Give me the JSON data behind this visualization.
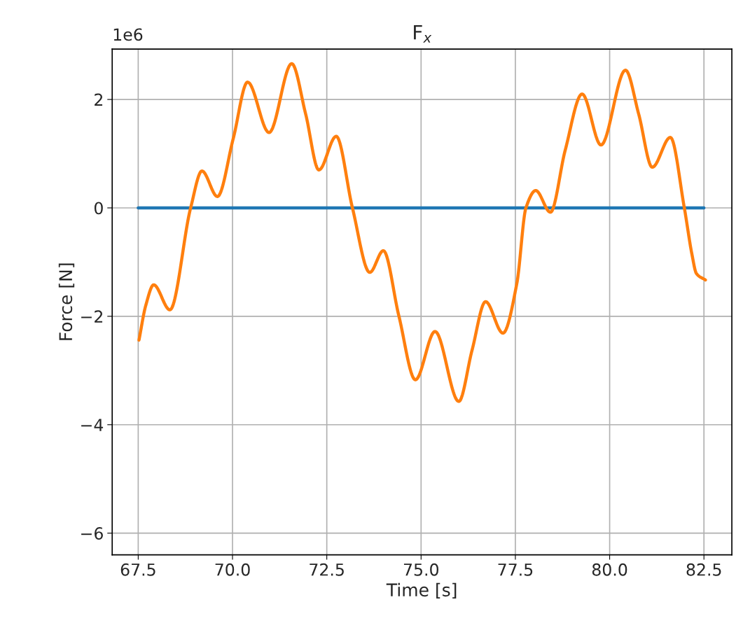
{
  "chart_data": {
    "type": "line",
    "title": "F$_{x}$",
    "xlabel": "Time [s]",
    "ylabel": "Force [N]",
    "annotations": [
      "1e6"
    ],
    "series": [
      {
        "color": "#1f77b4",
        "x": [
          67.5,
          70.0,
          72.5,
          75.0,
          77.5,
          80.0,
          82.5
        ],
        "values": [
          0,
          0,
          0,
          0,
          0,
          0,
          0
        ]
      },
      {
        "color": "#ff7f0e",
        "x": [
          67.52,
          67.7,
          67.91,
          68.34,
          68.89,
          69.19,
          69.6,
          70.02,
          70.4,
          70.97,
          71.57,
          71.94,
          72.29,
          72.75,
          73.18,
          73.64,
          74.0,
          74.41,
          74.85,
          75.37,
          76.0,
          76.35,
          76.71,
          77.17,
          77.54,
          77.78,
          78.04,
          78.43,
          78.82,
          79.27,
          79.77,
          80.42,
          80.77,
          81.13,
          81.61,
          81.98,
          82.18,
          82.3,
          82.54
        ],
        "values": [
          -2.44,
          -1.8,
          -1.42,
          -1.88,
          0,
          0.68,
          0.21,
          1.28,
          2.32,
          1.39,
          2.66,
          1.73,
          0.7,
          1.32,
          0,
          -1.19,
          -0.79,
          -1.99,
          -3.17,
          -2.28,
          -3.57,
          -2.63,
          -1.73,
          -2.31,
          -1.39,
          0,
          0.32,
          -0.08,
          1.06,
          2.1,
          1.16,
          2.54,
          1.73,
          0.75,
          1.3,
          0,
          -0.85,
          -1.21,
          -1.33
        ]
      }
    ],
    "xlim": [
      66.81,
      83.24
    ],
    "ylim": [
      -6.4,
      2.93
    ],
    "xticks": [
      {
        "value": 67.5,
        "label": "67.5"
      },
      {
        "value": 70,
        "label": "70.0"
      },
      {
        "value": 72.5,
        "label": "72.5"
      },
      {
        "value": 75,
        "label": "75.0"
      },
      {
        "value": 77.5,
        "label": "77.5"
      },
      {
        "value": 80,
        "label": "80.0"
      },
      {
        "value": 82.5,
        "label": "82.5"
      }
    ],
    "yticks": [
      {
        "value": -6,
        "label": "−6"
      },
      {
        "value": -4,
        "label": "−4"
      },
      {
        "value": -2,
        "label": "−2"
      },
      0,
      2
    ],
    "grid": true
  }
}
